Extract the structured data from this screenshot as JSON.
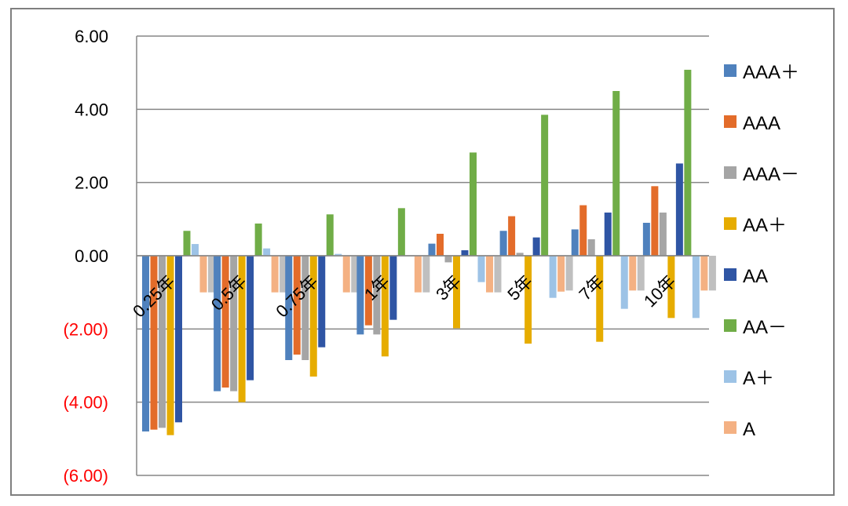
{
  "chart_data": {
    "type": "bar",
    "title": "",
    "xlabel": "",
    "ylabel": "",
    "ylim": [
      -6,
      6
    ],
    "yticks": [
      {
        "value": 6,
        "label": "6.00"
      },
      {
        "value": 4,
        "label": "4.00"
      },
      {
        "value": 2,
        "label": "2.00"
      },
      {
        "value": 0,
        "label": "0.00"
      },
      {
        "value": -2,
        "label": "(2.00)"
      },
      {
        "value": -4,
        "label": "(4.00)"
      },
      {
        "value": -6,
        "label": "(6.00)"
      }
    ],
    "negative_tick_color": "#ff0000",
    "positive_tick_color": "#000000",
    "grid": true,
    "legend_position": "right",
    "categories": [
      "0.25年",
      "0.5年",
      "0.75年",
      "1年",
      "3年",
      "5年",
      "7年",
      "10年"
    ],
    "series": [
      {
        "name": "AAA＋",
        "color": "#4f81bd",
        "values": [
          -4.8,
          -3.7,
          -2.85,
          -2.15,
          0.33,
          0.68,
          0.72,
          0.9
        ]
      },
      {
        "name": "AAA",
        "color": "#e36c2a",
        "values": [
          -4.75,
          -3.6,
          -2.7,
          -1.9,
          0.6,
          1.08,
          1.38,
          1.9
        ]
      },
      {
        "name": "AAA－",
        "color": "#a5a5a5",
        "values": [
          -4.7,
          -3.7,
          -2.85,
          -2.15,
          -0.18,
          0.08,
          0.45,
          1.18
        ]
      },
      {
        "name": "AA＋",
        "color": "#e6ac00",
        "values": [
          -4.9,
          -4.0,
          -3.3,
          -2.75,
          -1.98,
          -2.4,
          -2.35,
          -1.7
        ]
      },
      {
        "name": "AA",
        "color": "#2f55a4",
        "values": [
          -4.55,
          -3.4,
          -2.5,
          -1.75,
          0.15,
          0.5,
          1.18,
          2.52
        ]
      },
      {
        "name": "AA－",
        "color": "#70ad47",
        "values": [
          0.68,
          0.88,
          1.13,
          1.3,
          2.82,
          3.85,
          4.5,
          5.08
        ]
      },
      {
        "name": "A＋",
        "color": "#9dc3e6",
        "values": [
          0.32,
          0.2,
          0.05,
          0.0,
          -0.72,
          -1.15,
          -1.45,
          -1.7
        ]
      },
      {
        "name": "A",
        "color": "#f4b183",
        "values": [
          -1.0,
          -1.0,
          -1.0,
          -1.0,
          -1.0,
          -0.98,
          -0.95,
          -0.95
        ]
      }
    ],
    "extra_bar_color": "#bfbfbf",
    "extra_bar_values": [
      -1.0,
      -1.0,
      -1.0,
      -1.0,
      -1.0,
      -0.95,
      -0.95,
      -0.95
    ]
  }
}
